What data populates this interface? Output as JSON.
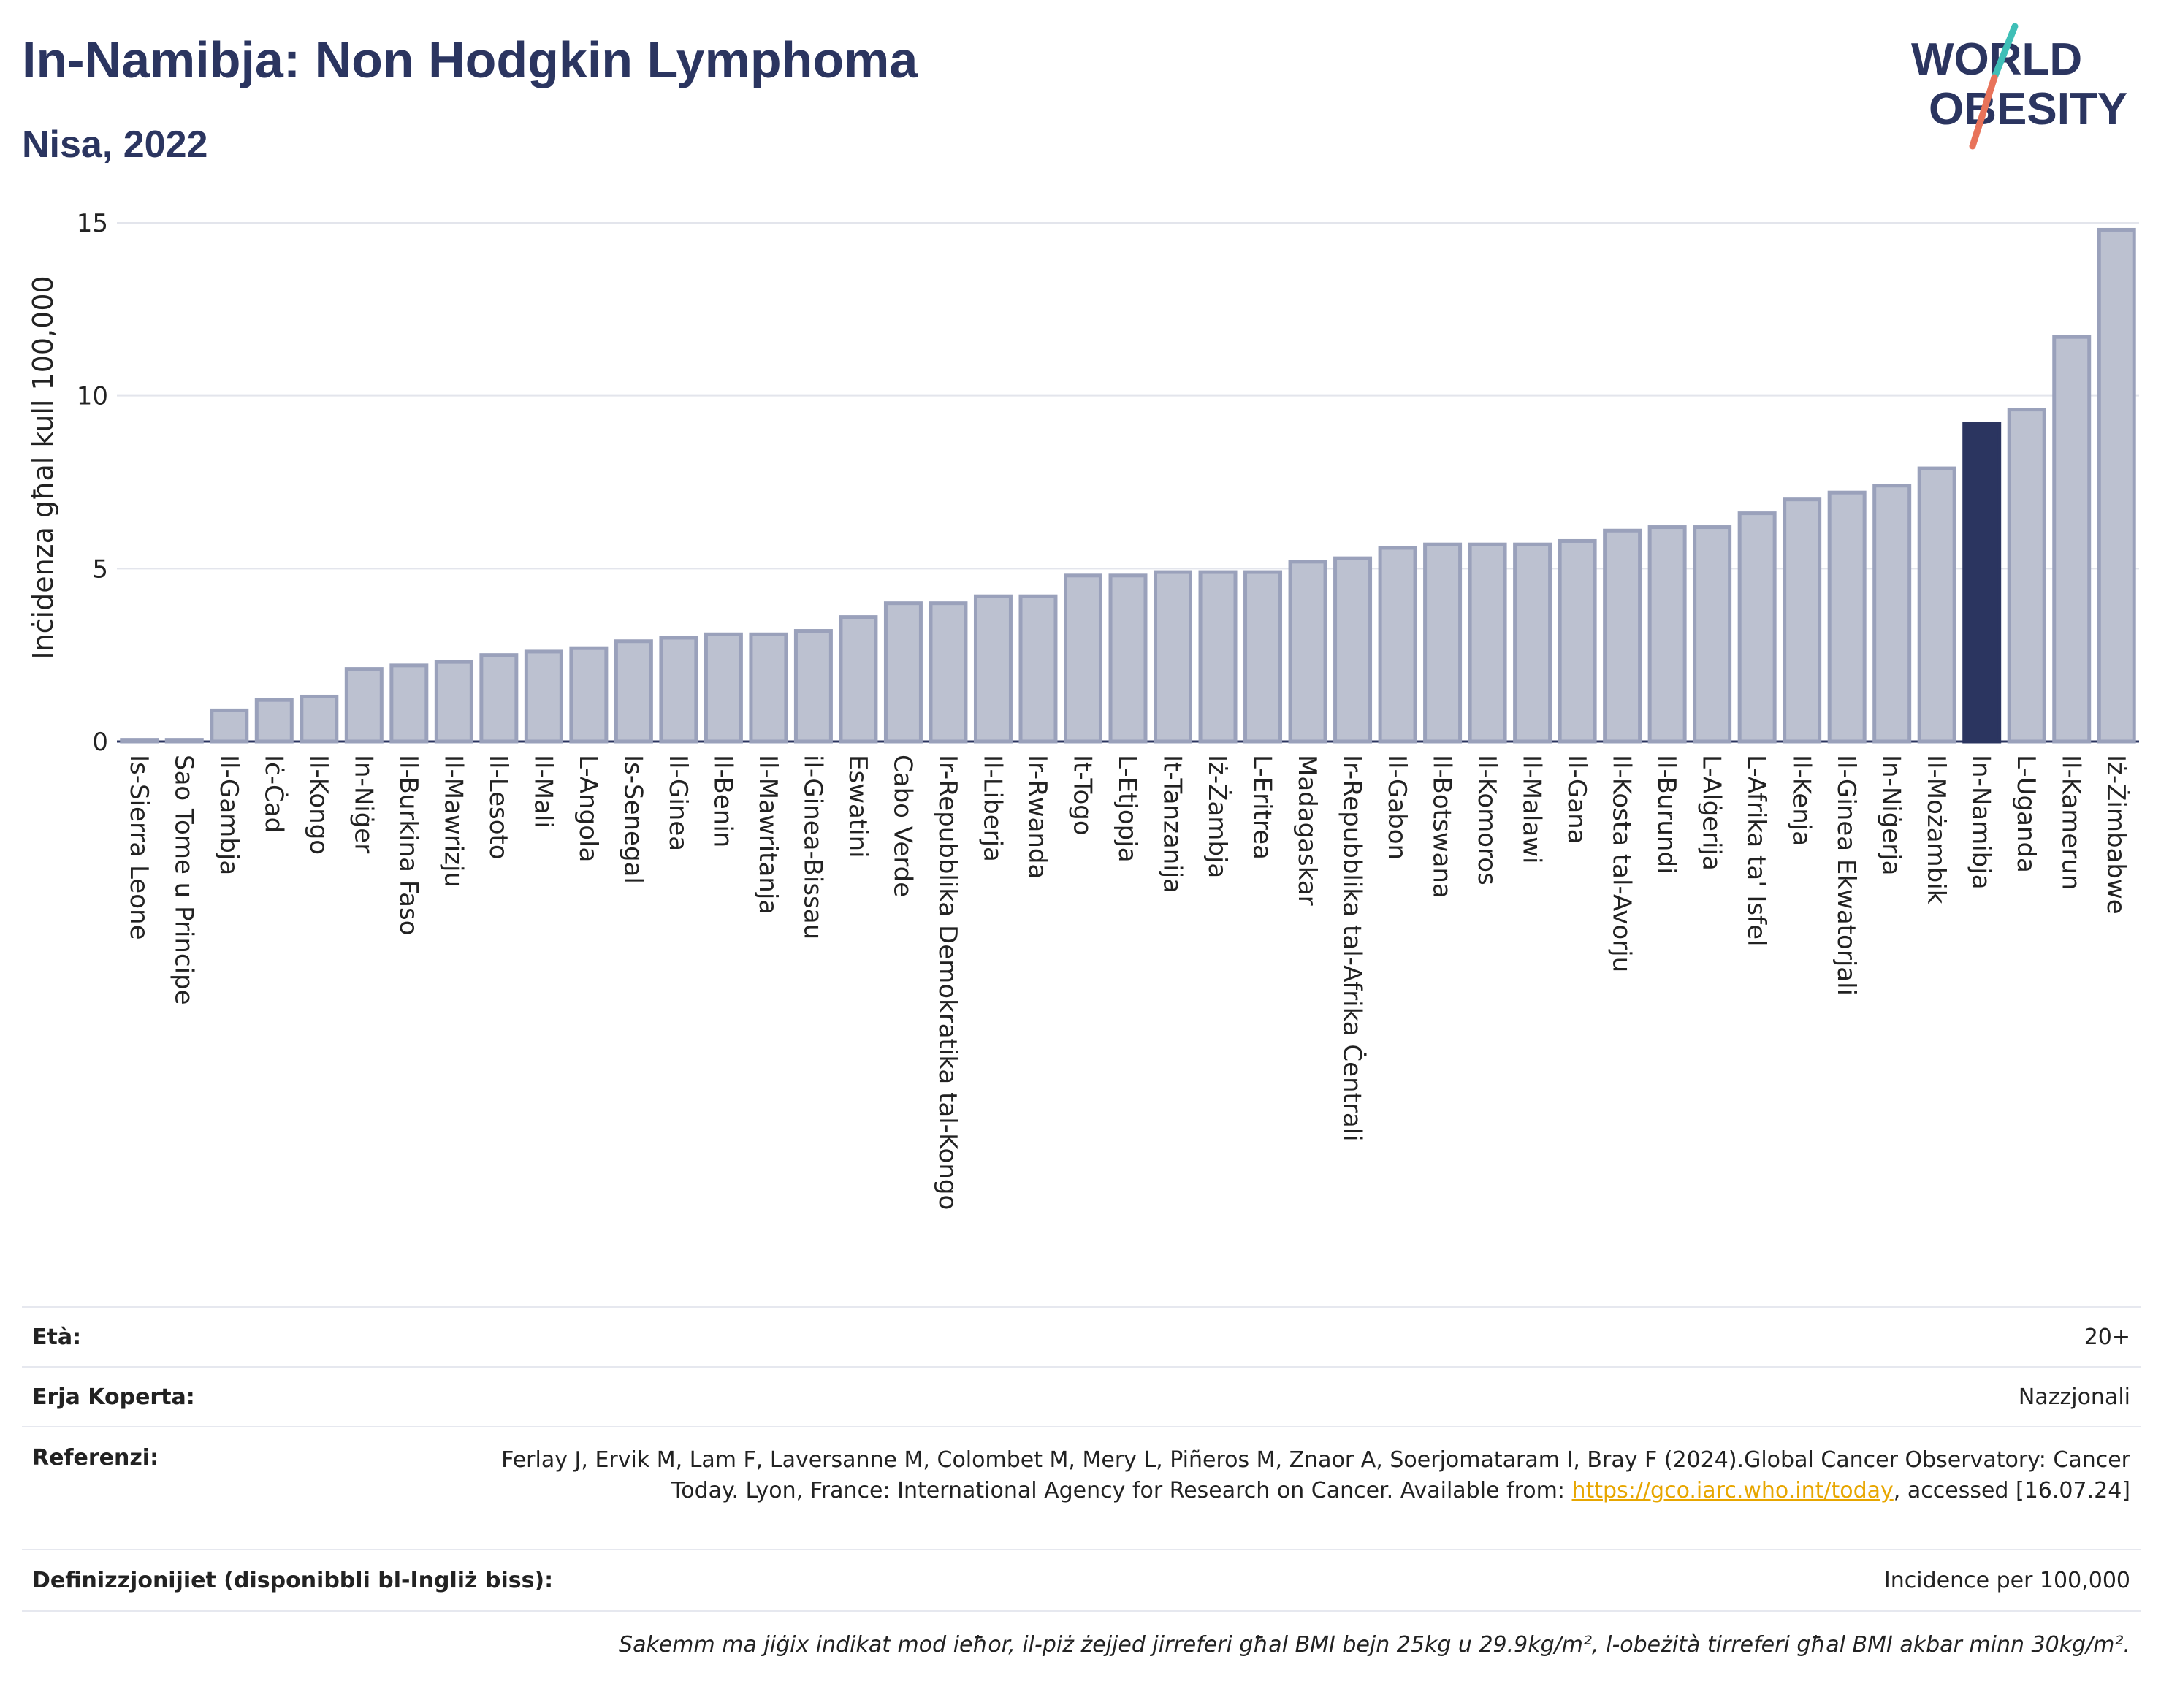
{
  "header": {
    "title": "In-Namibja: Non Hodgkin Lymphoma",
    "subtitle": "Nisa, 2022",
    "logo_line1": "WORLD",
    "logo_line2": "OBESITY"
  },
  "colors": {
    "bar": "#bcc1d0",
    "bar_border": "#9aa1bb",
    "highlight": "#2b3560",
    "text": "#2b3560",
    "link": "#e7a600",
    "logo_teal": "#3fbfb7",
    "logo_coral": "#e8735a"
  },
  "chart_data": {
    "type": "bar",
    "ylabel": "Inċidenza għal kull 100,000",
    "xlabel": "",
    "ylim": [
      0,
      15
    ],
    "yticks": [
      0,
      5,
      10,
      15
    ],
    "grid": true,
    "highlight": "In-Namibja",
    "categories": [
      "Is-Sierra Leone",
      "Sao Tome u Principe",
      "Il-Gambja",
      "Iċ-Ċad",
      "Il-Kongo",
      "In-Niġer",
      "Il-Burkina Faso",
      "Il-Mawrizju",
      "Il-Lesoto",
      "Il-Mali",
      "L-Angola",
      "Is-Senegal",
      "Il-Ginea",
      "Il-Benin",
      "Il-Mawritanja",
      "il-Ginea-Bissau",
      "Eswatini",
      "Cabo Verde",
      "Ir-Repubblika Demokratika tal-Kongo",
      "Il-Liberja",
      "Ir-Rwanda",
      "It-Togo",
      "L-Etjopja",
      "It-Tanzanija",
      "Iż-Żambja",
      "L-Eritrea",
      "Madagaskar",
      "Ir-Repubblika tal-Afrika Ċentrali",
      "Il-Gabon",
      "Il-Botswana",
      "Il-Komoros",
      "Il-Malawi",
      "Il-Gana",
      "Il-Kosta tal-Avorju",
      "Il-Burundi",
      "L-Alġerija",
      "L-Afrika ta' Isfel",
      "Il-Kenja",
      "Il-Ginea Ekwatorjali",
      "In-Niġerja",
      "Il-Możambik",
      "In-Namibja",
      "L-Uganda",
      "Il-Kamerun",
      "Iż-Żimbabwe"
    ],
    "values": [
      0.05,
      0.05,
      0.9,
      1.2,
      1.3,
      2.1,
      2.2,
      2.3,
      2.5,
      2.6,
      2.7,
      2.9,
      3.0,
      3.1,
      3.1,
      3.2,
      3.6,
      4.0,
      4.0,
      4.2,
      4.2,
      4.8,
      4.8,
      4.9,
      4.9,
      4.9,
      5.2,
      5.3,
      5.6,
      5.7,
      5.7,
      5.7,
      5.8,
      6.1,
      6.2,
      6.2,
      6.6,
      7.0,
      7.2,
      7.4,
      7.9,
      9.2,
      9.6,
      11.7,
      14.8
    ]
  },
  "info": {
    "age_label": "Età:",
    "age_value": "20+",
    "area_label": "Erja Koperta:",
    "area_value": "Nazzjonali",
    "ref_label": "Referenzi:",
    "ref_text": "Ferlay J, Ervik M, Lam F, Laversanne M, Colombet M, Mery L, Piñeros M, Znaor A, Soerjomataram I, Bray F (2024).Global Cancer Observatory: Cancer Today. Lyon, France: International Agency for Research on Cancer. Available from: ",
    "ref_link": "https://gco.iarc.who.int/today",
    "ref_after": ", accessed [16.07.24]",
    "def_label": "Definizzjonijiet (disponibbli bl-Ingliż biss):",
    "def_value": "Incidence per 100,000",
    "note": "Sakemm ma jiġix indikat mod ieħor, il-piż żejjed jirreferi għal BMI bejn 25kg u 29.9kg/m², l-obeżità tirreferi għal BMI akbar minn 30kg/m²."
  }
}
